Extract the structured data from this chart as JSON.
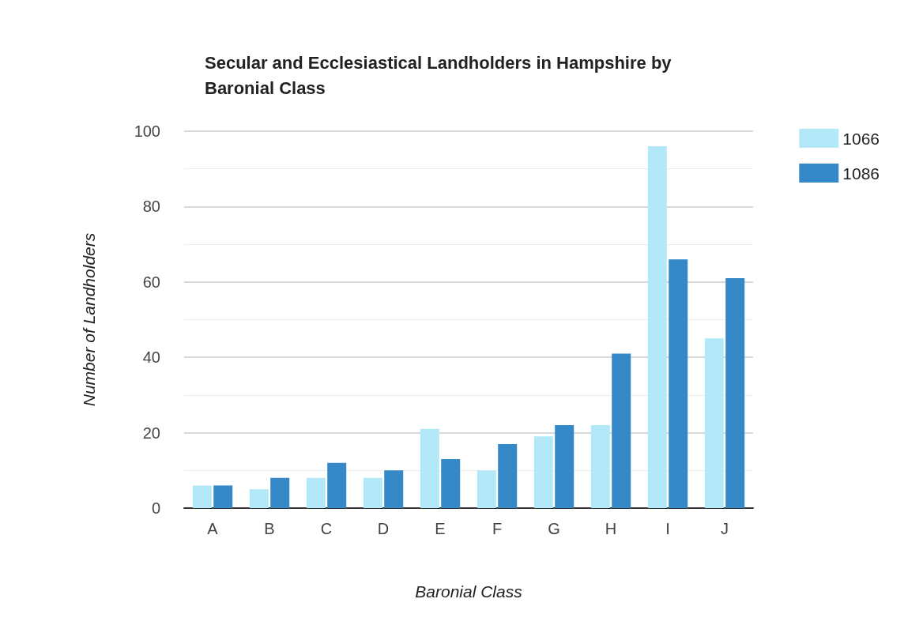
{
  "chart_data": {
    "type": "bar",
    "title": "Secular and Ecclesiastical Landholders in Hampshire by\nBaronial Class",
    "xlabel": "Baronial Class",
    "ylabel": "Number of Landholders",
    "categories": [
      "A",
      "B",
      "C",
      "D",
      "E",
      "F",
      "G",
      "H",
      "I",
      "J"
    ],
    "series": [
      {
        "name": "1066",
        "color": "#b3e8f8",
        "values": [
          6,
          5,
          8,
          8,
          21,
          10,
          19,
          22,
          96,
          45
        ]
      },
      {
        "name": "1086",
        "color": "#3689c9",
        "values": [
          6,
          8,
          12,
          10,
          13,
          17,
          22,
          41,
          66,
          61
        ]
      }
    ],
    "ylim": [
      0,
      100
    ],
    "yticks": [
      0,
      20,
      40,
      60,
      80,
      100
    ],
    "grid": "y",
    "legend": "top right"
  }
}
